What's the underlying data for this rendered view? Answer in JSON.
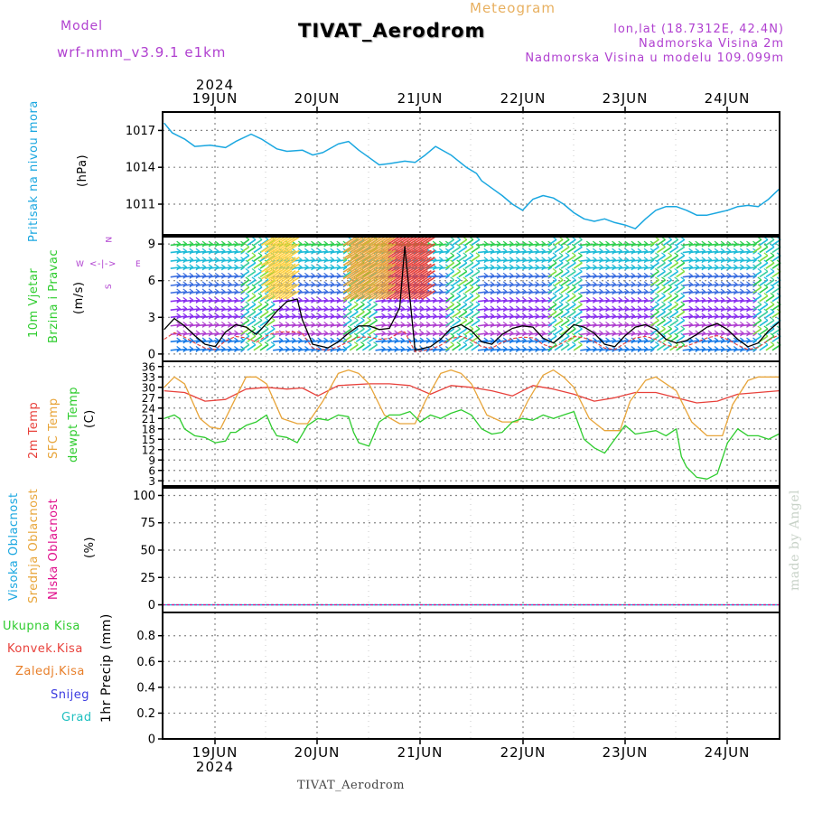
{
  "header": {
    "model_label": "Model",
    "model_name": "wrf-nmm_v3.9.1 e1km",
    "meteogram": "Meteogram",
    "station": "TIVAT_Aerodrom",
    "lonlat": "lon,lat (18.7312E, 42.4N)",
    "elevation": "Nadmorska Visina 2m",
    "model_elevation": "Nadmorska Visina u modelu 109.099m",
    "credit": "made by Angel",
    "footer_station": "TIVAT_Aerodrom"
  },
  "panel_labels": {
    "pressure": [
      "Pritisak na nivou mora",
      "(hPa)"
    ],
    "wind": [
      "10m Vjetar",
      "Brzina i Pravac",
      "(m/s)"
    ],
    "compass": [
      "N",
      "S",
      "W",
      "E"
    ],
    "temp": [
      "2m Temp",
      "SFC Temp",
      "dewpt Temp",
      "(C)"
    ],
    "cloud": [
      "Visoka Oblacnost",
      "Srednja Oblacnost",
      "Niska Oblacnost",
      "(%)"
    ],
    "precip": [
      "Ukupna Kisa",
      "Konvek.Kisa",
      "Zaledj.Kisa",
      "Snijeg",
      "Grad",
      "1hr Precip (mm)"
    ]
  },
  "colors": {
    "pressure": "#1aa7e0",
    "temp2m": "#e8413b",
    "sfc": "#e8a53a",
    "dewpt": "#2ecc2e",
    "high_cloud": "#1aa7e0",
    "mid_cloud": "#e8a53a",
    "low_cloud": "#e0108c",
    "magenta": "#b040d0",
    "blue": "#3b3be0",
    "cyan": "#20c0c0",
    "grid": "#888888"
  },
  "chart_data": [
    {
      "type": "line",
      "panel": "pressure",
      "x_ticks": [
        "19JUN",
        "20JUN",
        "21JUN",
        "22JUN",
        "23JUN",
        "24JUN"
      ],
      "year": "2024",
      "ylabel": "(hPa)",
      "ylim": [
        1008.5,
        1018.5
      ],
      "yticks": [
        1011,
        1014,
        1017
      ],
      "series": [
        {
          "name": "Pritisak na nivou mora",
          "x_days": [
            0.0,
            0.08,
            0.2,
            0.3,
            0.45,
            0.6,
            0.7,
            0.85,
            0.95,
            1.1,
            1.2,
            1.35,
            1.45,
            1.55,
            1.7,
            1.8,
            1.9,
            2.0,
            2.1,
            2.2,
            2.35,
            2.45,
            2.55,
            2.65,
            2.8,
            2.95,
            3.05,
            3.1,
            3.2,
            3.3,
            3.4,
            3.5,
            3.6,
            3.7,
            3.8,
            3.9,
            4.0,
            4.1,
            4.2,
            4.3,
            4.4,
            4.5,
            4.6,
            4.7,
            4.8,
            4.9,
            5.0,
            5.1,
            5.2,
            5.3,
            5.4,
            5.5,
            5.6,
            5.7,
            5.8,
            5.9,
            6.0
          ],
          "values": [
            1017.6,
            1016.8,
            1016.3,
            1015.7,
            1015.8,
            1015.6,
            1016.1,
            1016.7,
            1016.3,
            1015.5,
            1015.3,
            1015.4,
            1015.0,
            1015.2,
            1015.9,
            1016.1,
            1015.4,
            1014.8,
            1014.2,
            1014.3,
            1014.5,
            1014.4,
            1015.0,
            1015.7,
            1015.0,
            1014.0,
            1013.5,
            1012.9,
            1012.3,
            1011.7,
            1011.0,
            1010.5,
            1011.4,
            1011.7,
            1011.5,
            1011.0,
            1010.3,
            1009.8,
            1009.6,
            1009.8,
            1009.5,
            1009.3,
            1009.0,
            1009.8,
            1010.5,
            1010.8,
            1010.8,
            1010.5,
            1010.1,
            1010.1,
            1010.3,
            1010.5,
            1010.8,
            1010.9,
            1010.8,
            1011.4,
            1012.2
          ]
        }
      ]
    },
    {
      "type": "line",
      "panel": "wind",
      "ylabel": "(m/s)",
      "ylim": [
        -0.6,
        9.6
      ],
      "yticks": [
        0,
        3,
        6,
        9
      ],
      "barb_levels": [
        0.3,
        1.0,
        1.6,
        2.3,
        3.0,
        3.6,
        4.3,
        5.0,
        5.6,
        6.3,
        7.0,
        7.6,
        8.3,
        8.9
      ],
      "series": [
        {
          "name": "10m Vjetar",
          "x_days": [
            0.0,
            0.1,
            0.2,
            0.3,
            0.4,
            0.5,
            0.6,
            0.7,
            0.8,
            0.9,
            1.0,
            1.1,
            1.2,
            1.3,
            1.35,
            1.45,
            1.6,
            1.7,
            1.8,
            1.9,
            2.0,
            2.1,
            2.2,
            2.3,
            2.35,
            2.45,
            2.6,
            2.7,
            2.8,
            2.9,
            3.0,
            3.1,
            3.2,
            3.3,
            3.4,
            3.5,
            3.6,
            3.7,
            3.8,
            3.9,
            4.0,
            4.1,
            4.2,
            4.3,
            4.4,
            4.5,
            4.6,
            4.7,
            4.8,
            4.9,
            5.0,
            5.1,
            5.2,
            5.3,
            5.4,
            5.5,
            5.6,
            5.7,
            5.8,
            5.9,
            6.0
          ],
          "values": [
            2.0,
            2.9,
            2.3,
            1.5,
            0.8,
            0.6,
            1.8,
            2.4,
            2.2,
            1.6,
            2.5,
            3.5,
            4.3,
            4.5,
            2.8,
            0.8,
            0.5,
            1.0,
            1.7,
            2.3,
            2.3,
            2.0,
            2.1,
            3.8,
            8.8,
            0.3,
            0.6,
            1.2,
            2.1,
            2.4,
            1.9,
            1.0,
            0.8,
            1.6,
            2.1,
            2.3,
            2.2,
            1.3,
            0.9,
            1.6,
            2.4,
            2.2,
            1.7,
            0.8,
            0.6,
            1.5,
            2.2,
            2.4,
            2.0,
            1.2,
            0.9,
            1.1,
            1.6,
            2.2,
            2.5,
            2.0,
            1.2,
            0.6,
            0.9,
            1.9,
            2.6
          ]
        }
      ]
    },
    {
      "type": "line",
      "panel": "temperature",
      "ylabel": "(C)",
      "ylim": [
        1.5,
        37.5
      ],
      "yticks": [
        3,
        6,
        9,
        12,
        15,
        18,
        21,
        24,
        27,
        30,
        33,
        36
      ],
      "series": [
        {
          "name": "2m Temp",
          "x_days": [
            0.0,
            0.2,
            0.4,
            0.6,
            0.8,
            1.0,
            1.2,
            1.35,
            1.5,
            1.7,
            2.0,
            2.2,
            2.4,
            2.6,
            2.8,
            3.0,
            3.2,
            3.4,
            3.6,
            3.8,
            4.0,
            4.2,
            4.4,
            4.6,
            4.8,
            5.0,
            5.2,
            5.4,
            5.6,
            5.8,
            6.0
          ],
          "values": [
            29,
            28.5,
            26,
            26.5,
            29.5,
            30,
            29.5,
            29.8,
            27.5,
            30.5,
            31,
            31,
            30.5,
            28,
            30.5,
            30,
            29,
            27.5,
            30.5,
            29.5,
            28,
            26,
            27,
            28.5,
            28.5,
            27,
            25.5,
            26,
            28,
            28.5,
            29
          ]
        },
        {
          "name": "SFC Temp",
          "x_days": [
            0.0,
            0.1,
            0.2,
            0.35,
            0.45,
            0.55,
            0.7,
            0.8,
            0.9,
            1.0,
            1.15,
            1.3,
            1.4,
            1.55,
            1.7,
            1.8,
            1.9,
            2.0,
            2.15,
            2.3,
            2.45,
            2.55,
            2.7,
            2.8,
            2.9,
            3.0,
            3.15,
            3.3,
            3.45,
            3.55,
            3.7,
            3.8,
            3.9,
            4.0,
            4.15,
            4.3,
            4.45,
            4.55,
            4.7,
            4.8,
            4.9,
            5.0,
            5.15,
            5.3,
            5.45,
            5.55,
            5.7,
            5.8,
            5.9,
            6.0
          ],
          "values": [
            30,
            33,
            31,
            21,
            18.5,
            18,
            27,
            33,
            33,
            31,
            21,
            19.5,
            19.5,
            26,
            34,
            35,
            34,
            31,
            22,
            19.5,
            19.5,
            26,
            34,
            35,
            34,
            31,
            22,
            20,
            20,
            26,
            33.5,
            35,
            33,
            30,
            21,
            17.5,
            17.5,
            26,
            32,
            33,
            31,
            29,
            20,
            16,
            16,
            25,
            32,
            33,
            33,
            33
          ]
        },
        {
          "name": "dewpt Temp",
          "x_days": [
            0.0,
            0.1,
            0.15,
            0.2,
            0.3,
            0.4,
            0.5,
            0.6,
            0.65,
            0.7,
            0.8,
            0.9,
            1.0,
            1.05,
            1.1,
            1.2,
            1.3,
            1.4,
            1.5,
            1.6,
            1.7,
            1.8,
            1.85,
            1.9,
            2.0,
            2.1,
            2.2,
            2.3,
            2.4,
            2.5,
            2.6,
            2.7,
            2.8,
            2.9,
            3.0,
            3.1,
            3.2,
            3.3,
            3.4,
            3.5,
            3.6,
            3.7,
            3.8,
            3.9,
            4.0,
            4.1,
            4.2,
            4.3,
            4.4,
            4.5,
            4.6,
            4.7,
            4.8,
            4.9,
            5.0,
            5.05,
            5.1,
            5.2,
            5.3,
            5.4,
            5.5,
            5.6,
            5.7,
            5.8,
            5.9,
            6.0
          ],
          "values": [
            21,
            22,
            21,
            18,
            16,
            15.5,
            14,
            14.5,
            17,
            17,
            19,
            20,
            22,
            18.5,
            16,
            15.5,
            14,
            19,
            21,
            20.5,
            22,
            21.5,
            17,
            14,
            13,
            20,
            22,
            22,
            23,
            20,
            22,
            21,
            22.5,
            23.5,
            22,
            18,
            16.5,
            17,
            20,
            21,
            20.5,
            22,
            21,
            22,
            23,
            15,
            12.5,
            11,
            15,
            19,
            16.5,
            17,
            17.5,
            16,
            18,
            10,
            7,
            4,
            3.5,
            5,
            14,
            18,
            16,
            16,
            15,
            16.5
          ]
        }
      ]
    },
    {
      "type": "line",
      "panel": "cloud",
      "ylabel": "(%)",
      "ylim": [
        -7,
        107
      ],
      "yticks": [
        0,
        25,
        50,
        75,
        100
      ],
      "series": [
        {
          "name": "Visoka Oblacnost",
          "x_days": [
            0,
            6
          ],
          "values": [
            0,
            0
          ]
        },
        {
          "name": "Srednja Oblacnost",
          "x_days": [
            0,
            6
          ],
          "values": [
            0,
            0
          ]
        },
        {
          "name": "Niska Oblacnost",
          "x_days": [
            0,
            6
          ],
          "values": [
            0,
            0
          ]
        }
      ]
    },
    {
      "type": "line",
      "panel": "precipitation",
      "ylabel": "1hr Precip (mm)",
      "ylim": [
        0,
        0.98
      ],
      "yticks": [
        0,
        0.2,
        0.4,
        0.6,
        0.8
      ],
      "x_ticks": [
        "19JUN",
        "20JUN",
        "21JUN",
        "22JUN",
        "23JUN",
        "24JUN"
      ],
      "year": "2024",
      "series": [
        {
          "name": "Ukupna Kisa",
          "x_days": [
            0,
            6
          ],
          "values": [
            0,
            0
          ]
        }
      ]
    }
  ]
}
